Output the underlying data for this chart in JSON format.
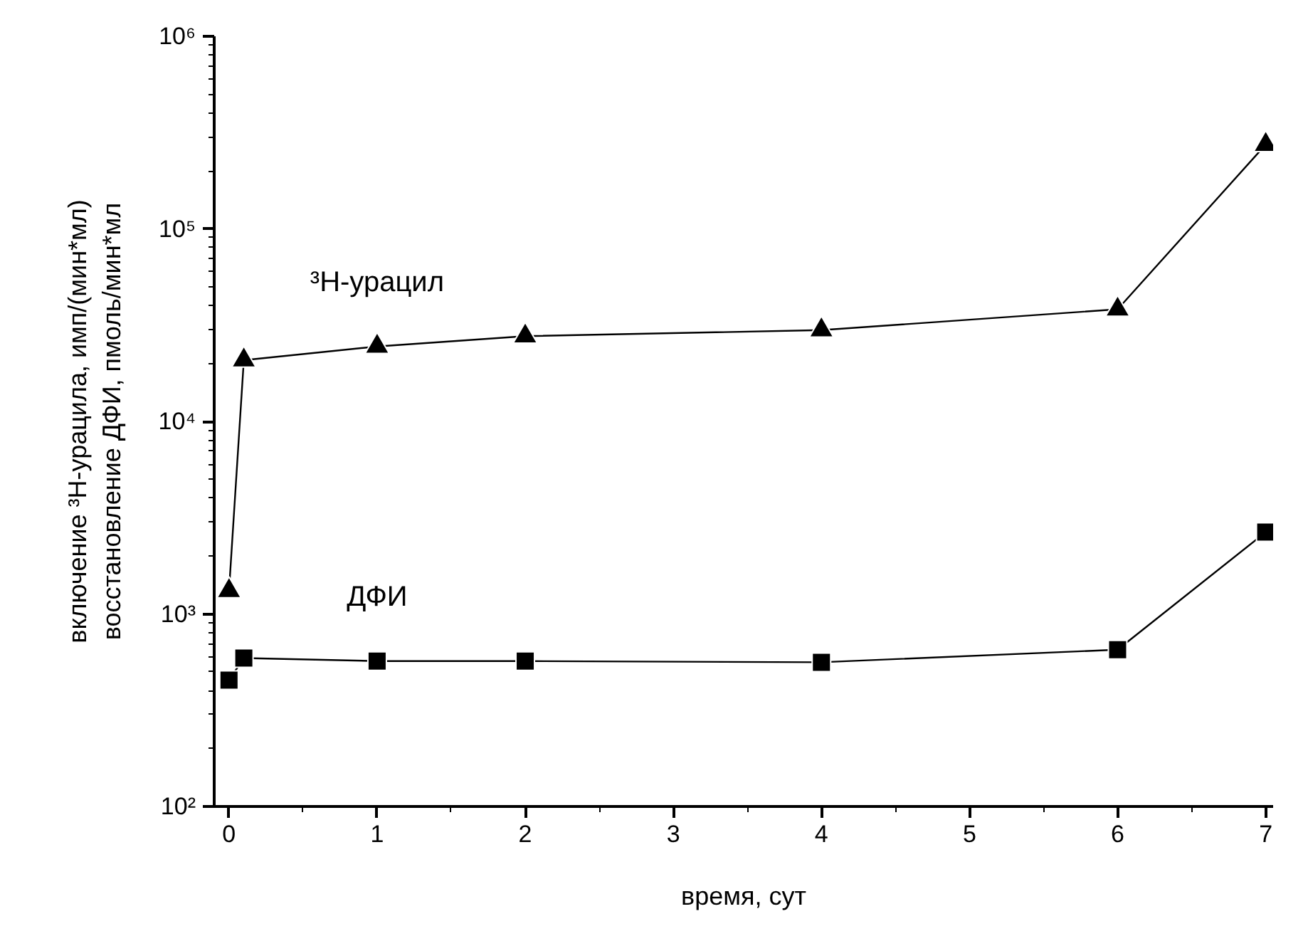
{
  "chart_data": {
    "type": "line",
    "xlabel": "время, сут",
    "ylabel": "включение ³H-урацила, имп/(мин*мл)\nвосстановление ДФИ, пмоль/мин*мл",
    "log": "y",
    "grid": false,
    "line_style": "solid",
    "xlim": [
      -0.1,
      7.05
    ],
    "xticks": [
      0,
      1,
      2,
      3,
      4,
      5,
      6,
      7
    ],
    "ylim": [
      100,
      1000000
    ],
    "yticks": [
      {
        "value": 100,
        "label": "10²"
      },
      {
        "value": 1000,
        "label": "10³"
      },
      {
        "value": 10000,
        "label": "10⁴"
      },
      {
        "value": 100000,
        "label": "10⁵"
      },
      {
        "value": 1000000,
        "label": "10⁶"
      }
    ],
    "x": [
      0,
      0.1,
      1,
      2,
      4,
      6,
      7
    ],
    "series": [
      {
        "name": "³H-урацил",
        "color": "#000000",
        "marker": "triangle",
        "values": [
          1320,
          20800,
          24500,
          27700,
          29800,
          38200,
          274000
        ]
      },
      {
        "name": "ДФИ",
        "color": "#000000",
        "marker": "square",
        "values": [
          453,
          590,
          569,
          569,
          561,
          652,
          2660
        ]
      }
    ]
  }
}
